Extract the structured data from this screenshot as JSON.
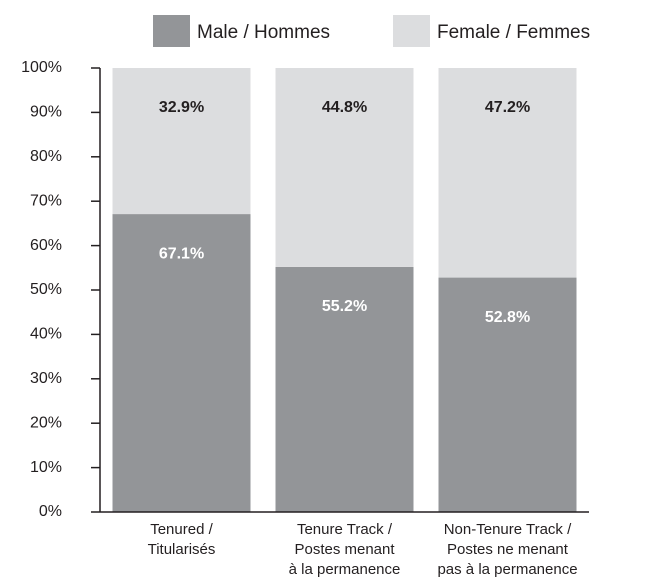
{
  "chart_data": {
    "type": "stacked_bar",
    "categories": [
      [
        "Tenured /",
        "Titularisés"
      ],
      [
        "Tenure Track /",
        "Postes menant",
        "à la permanence"
      ],
      [
        "Non-Tenure Track /",
        "Postes ne menant",
        "pas à la permanence"
      ]
    ],
    "series": [
      {
        "name": "Male / Hommes",
        "color": "#939598",
        "label_color": "#ffffff",
        "values": [
          67.1,
          55.2,
          52.8
        ],
        "value_labels": [
          "67.1%",
          "55.2%",
          "52.8%"
        ]
      },
      {
        "name": "Female / Femmes",
        "color": "#dcdddf",
        "label_color": "#231f20",
        "values": [
          32.9,
          44.8,
          47.2
        ],
        "value_labels": [
          "32.9%",
          "44.8%",
          "47.2%"
        ]
      }
    ],
    "ylim": [
      0,
      100
    ],
    "yticks": [
      {
        "value": 0,
        "label": "0%"
      },
      {
        "value": 10,
        "label": "10%"
      },
      {
        "value": 20,
        "label": "20%"
      },
      {
        "value": 30,
        "label": "30%"
      },
      {
        "value": 40,
        "label": "40%"
      },
      {
        "value": 50,
        "label": "50%"
      },
      {
        "value": 60,
        "label": "60%"
      },
      {
        "value": 70,
        "label": "70%"
      },
      {
        "value": 80,
        "label": "80%"
      },
      {
        "value": 90,
        "label": "90%"
      },
      {
        "value": 100,
        "label": "100%"
      }
    ],
    "legend": "top"
  }
}
